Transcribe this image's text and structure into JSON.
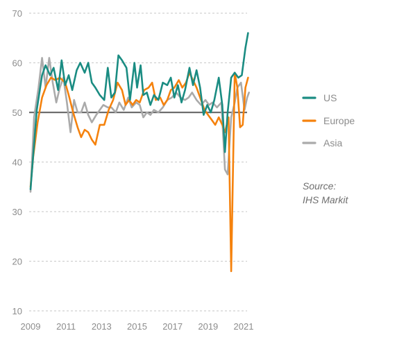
{
  "chart_data": {
    "type": "line",
    "title": "",
    "xlabel": "",
    "ylabel": "",
    "xlim": [
      2009,
      2021.3
    ],
    "ylim": [
      10,
      70
    ],
    "yticks": [
      10,
      20,
      30,
      40,
      50,
      60,
      70
    ],
    "xticks": [
      2009,
      2011,
      2013,
      2015,
      2017,
      2019,
      2021
    ],
    "reference_line": 50,
    "grid": "horizontal-dashed",
    "legend_position": "right",
    "series": [
      {
        "name": "US",
        "color": "#1a8c82",
        "points": [
          [
            2009.0,
            34.5
          ],
          [
            2009.35,
            50.5
          ],
          [
            2009.65,
            57.5
          ],
          [
            2009.85,
            59.5
          ],
          [
            2010.1,
            57.5
          ],
          [
            2010.3,
            59.0
          ],
          [
            2010.55,
            54.5
          ],
          [
            2010.75,
            60.5
          ],
          [
            2010.95,
            55.5
          ],
          [
            2011.15,
            57.5
          ],
          [
            2011.35,
            54.5
          ],
          [
            2011.6,
            58.5
          ],
          [
            2011.8,
            60.0
          ],
          [
            2012.05,
            58.0
          ],
          [
            2012.25,
            60.0
          ],
          [
            2012.45,
            56.0
          ],
          [
            2012.65,
            55.0
          ],
          [
            2012.9,
            53.5
          ],
          [
            2013.15,
            52.5
          ],
          [
            2013.35,
            59.0
          ],
          [
            2013.55,
            53.0
          ],
          [
            2013.75,
            54.0
          ],
          [
            2013.95,
            61.5
          ],
          [
            2014.15,
            60.5
          ],
          [
            2014.4,
            59.0
          ],
          [
            2014.6,
            52.5
          ],
          [
            2014.85,
            60.0
          ],
          [
            2015.0,
            55.0
          ],
          [
            2015.2,
            59.5
          ],
          [
            2015.35,
            53.5
          ],
          [
            2015.55,
            54.0
          ],
          [
            2015.75,
            51.5
          ],
          [
            2015.95,
            53.5
          ],
          [
            2016.2,
            52.5
          ],
          [
            2016.45,
            56.0
          ],
          [
            2016.7,
            55.5
          ],
          [
            2016.9,
            57.0
          ],
          [
            2017.1,
            53.0
          ],
          [
            2017.3,
            55.5
          ],
          [
            2017.5,
            52.0
          ],
          [
            2017.7,
            54.5
          ],
          [
            2017.95,
            59.0
          ],
          [
            2018.15,
            55.5
          ],
          [
            2018.35,
            58.5
          ],
          [
            2018.55,
            55.0
          ],
          [
            2018.75,
            49.5
          ],
          [
            2018.95,
            51.5
          ],
          [
            2019.15,
            50.0
          ],
          [
            2019.35,
            52.5
          ],
          [
            2019.6,
            57.0
          ],
          [
            2019.8,
            51.5
          ],
          [
            2019.95,
            42.0
          ],
          [
            2020.1,
            50.0
          ],
          [
            2020.3,
            57.0
          ],
          [
            2020.5,
            58.0
          ],
          [
            2020.7,
            57.0
          ],
          [
            2020.9,
            57.5
          ],
          [
            2021.1,
            63.0
          ],
          [
            2021.25,
            66.0
          ]
        ]
      },
      {
        "name": "Europe",
        "color": "#f5820d",
        "points": [
          [
            2009.0,
            35.0
          ],
          [
            2009.15,
            41.0
          ],
          [
            2009.4,
            48.0
          ],
          [
            2009.65,
            53.0
          ],
          [
            2009.9,
            55.5
          ],
          [
            2010.15,
            57.0
          ],
          [
            2010.4,
            56.5
          ],
          [
            2010.65,
            57.0
          ],
          [
            2010.95,
            56.0
          ],
          [
            2011.15,
            53.5
          ],
          [
            2011.4,
            50.0
          ],
          [
            2011.65,
            47.0
          ],
          [
            2011.85,
            45.0
          ],
          [
            2012.05,
            46.5
          ],
          [
            2012.25,
            46.0
          ],
          [
            2012.45,
            44.5
          ],
          [
            2012.65,
            43.5
          ],
          [
            2012.9,
            47.5
          ],
          [
            2013.15,
            47.5
          ],
          [
            2013.4,
            50.5
          ],
          [
            2013.65,
            52.5
          ],
          [
            2013.9,
            56.0
          ],
          [
            2014.15,
            54.5
          ],
          [
            2014.35,
            51.5
          ],
          [
            2014.55,
            52.5
          ],
          [
            2014.75,
            51.5
          ],
          [
            2014.95,
            52.5
          ],
          [
            2015.15,
            52.0
          ],
          [
            2015.4,
            54.5
          ],
          [
            2015.65,
            55.0
          ],
          [
            2015.85,
            56.0
          ],
          [
            2016.05,
            52.5
          ],
          [
            2016.3,
            53.0
          ],
          [
            2016.5,
            51.5
          ],
          [
            2016.7,
            52.5
          ],
          [
            2016.9,
            54.5
          ],
          [
            2017.1,
            55.0
          ],
          [
            2017.35,
            56.5
          ],
          [
            2017.55,
            55.0
          ],
          [
            2017.75,
            56.0
          ],
          [
            2017.95,
            58.0
          ],
          [
            2018.15,
            56.5
          ],
          [
            2018.35,
            55.0
          ],
          [
            2018.6,
            52.5
          ],
          [
            2018.8,
            50.5
          ],
          [
            2019.0,
            49.5
          ],
          [
            2019.2,
            48.5
          ],
          [
            2019.4,
            47.5
          ],
          [
            2019.6,
            49.0
          ],
          [
            2019.8,
            47.5
          ],
          [
            2019.95,
            46.0
          ],
          [
            2020.15,
            49.0
          ],
          [
            2020.3,
            18.0
          ],
          [
            2020.5,
            58.0
          ],
          [
            2020.65,
            55.0
          ],
          [
            2020.8,
            47.0
          ],
          [
            2020.95,
            47.5
          ],
          [
            2021.1,
            55.0
          ],
          [
            2021.25,
            57.0
          ]
        ]
      },
      {
        "name": "Asia",
        "color": "#aaaaaa",
        "points": [
          [
            2009.0,
            34.0
          ],
          [
            2009.2,
            49.0
          ],
          [
            2009.45,
            55.0
          ],
          [
            2009.65,
            61.0
          ],
          [
            2009.85,
            55.0
          ],
          [
            2010.05,
            61.0
          ],
          [
            2010.25,
            56.0
          ],
          [
            2010.45,
            52.0
          ],
          [
            2010.65,
            55.0
          ],
          [
            2010.85,
            57.0
          ],
          [
            2011.05,
            52.0
          ],
          [
            2011.25,
            46.0
          ],
          [
            2011.45,
            52.5
          ],
          [
            2011.65,
            50.0
          ],
          [
            2011.85,
            50.0
          ],
          [
            2012.05,
            52.0
          ],
          [
            2012.25,
            49.5
          ],
          [
            2012.45,
            48.0
          ],
          [
            2012.7,
            49.5
          ],
          [
            2012.9,
            50.5
          ],
          [
            2013.1,
            51.5
          ],
          [
            2013.35,
            51.0
          ],
          [
            2013.55,
            51.0
          ],
          [
            2013.8,
            50.0
          ],
          [
            2014.0,
            52.0
          ],
          [
            2014.25,
            50.5
          ],
          [
            2014.5,
            53.0
          ],
          [
            2014.7,
            51.0
          ],
          [
            2014.95,
            52.0
          ],
          [
            2015.15,
            51.5
          ],
          [
            2015.35,
            49.0
          ],
          [
            2015.55,
            50.0
          ],
          [
            2015.75,
            49.5
          ],
          [
            2015.95,
            50.5
          ],
          [
            2016.2,
            50.0
          ],
          [
            2016.45,
            51.0
          ],
          [
            2016.7,
            52.5
          ],
          [
            2016.95,
            53.0
          ],
          [
            2017.2,
            54.0
          ],
          [
            2017.45,
            53.0
          ],
          [
            2017.7,
            52.5
          ],
          [
            2017.9,
            53.0
          ],
          [
            2018.1,
            54.0
          ],
          [
            2018.35,
            52.5
          ],
          [
            2018.6,
            51.5
          ],
          [
            2018.85,
            52.5
          ],
          [
            2019.05,
            51.5
          ],
          [
            2019.25,
            52.0
          ],
          [
            2019.5,
            51.0
          ],
          [
            2019.75,
            52.0
          ],
          [
            2019.95,
            38.5
          ],
          [
            2020.1,
            37.5
          ],
          [
            2020.3,
            49.0
          ],
          [
            2020.5,
            52.0
          ],
          [
            2020.65,
            55.0
          ],
          [
            2020.85,
            56.0
          ],
          [
            2021.05,
            50.5
          ],
          [
            2021.2,
            53.0
          ],
          [
            2021.3,
            54.0
          ]
        ]
      }
    ],
    "annotation": {
      "line1": "Source:",
      "line2": "IHS Markit"
    }
  }
}
